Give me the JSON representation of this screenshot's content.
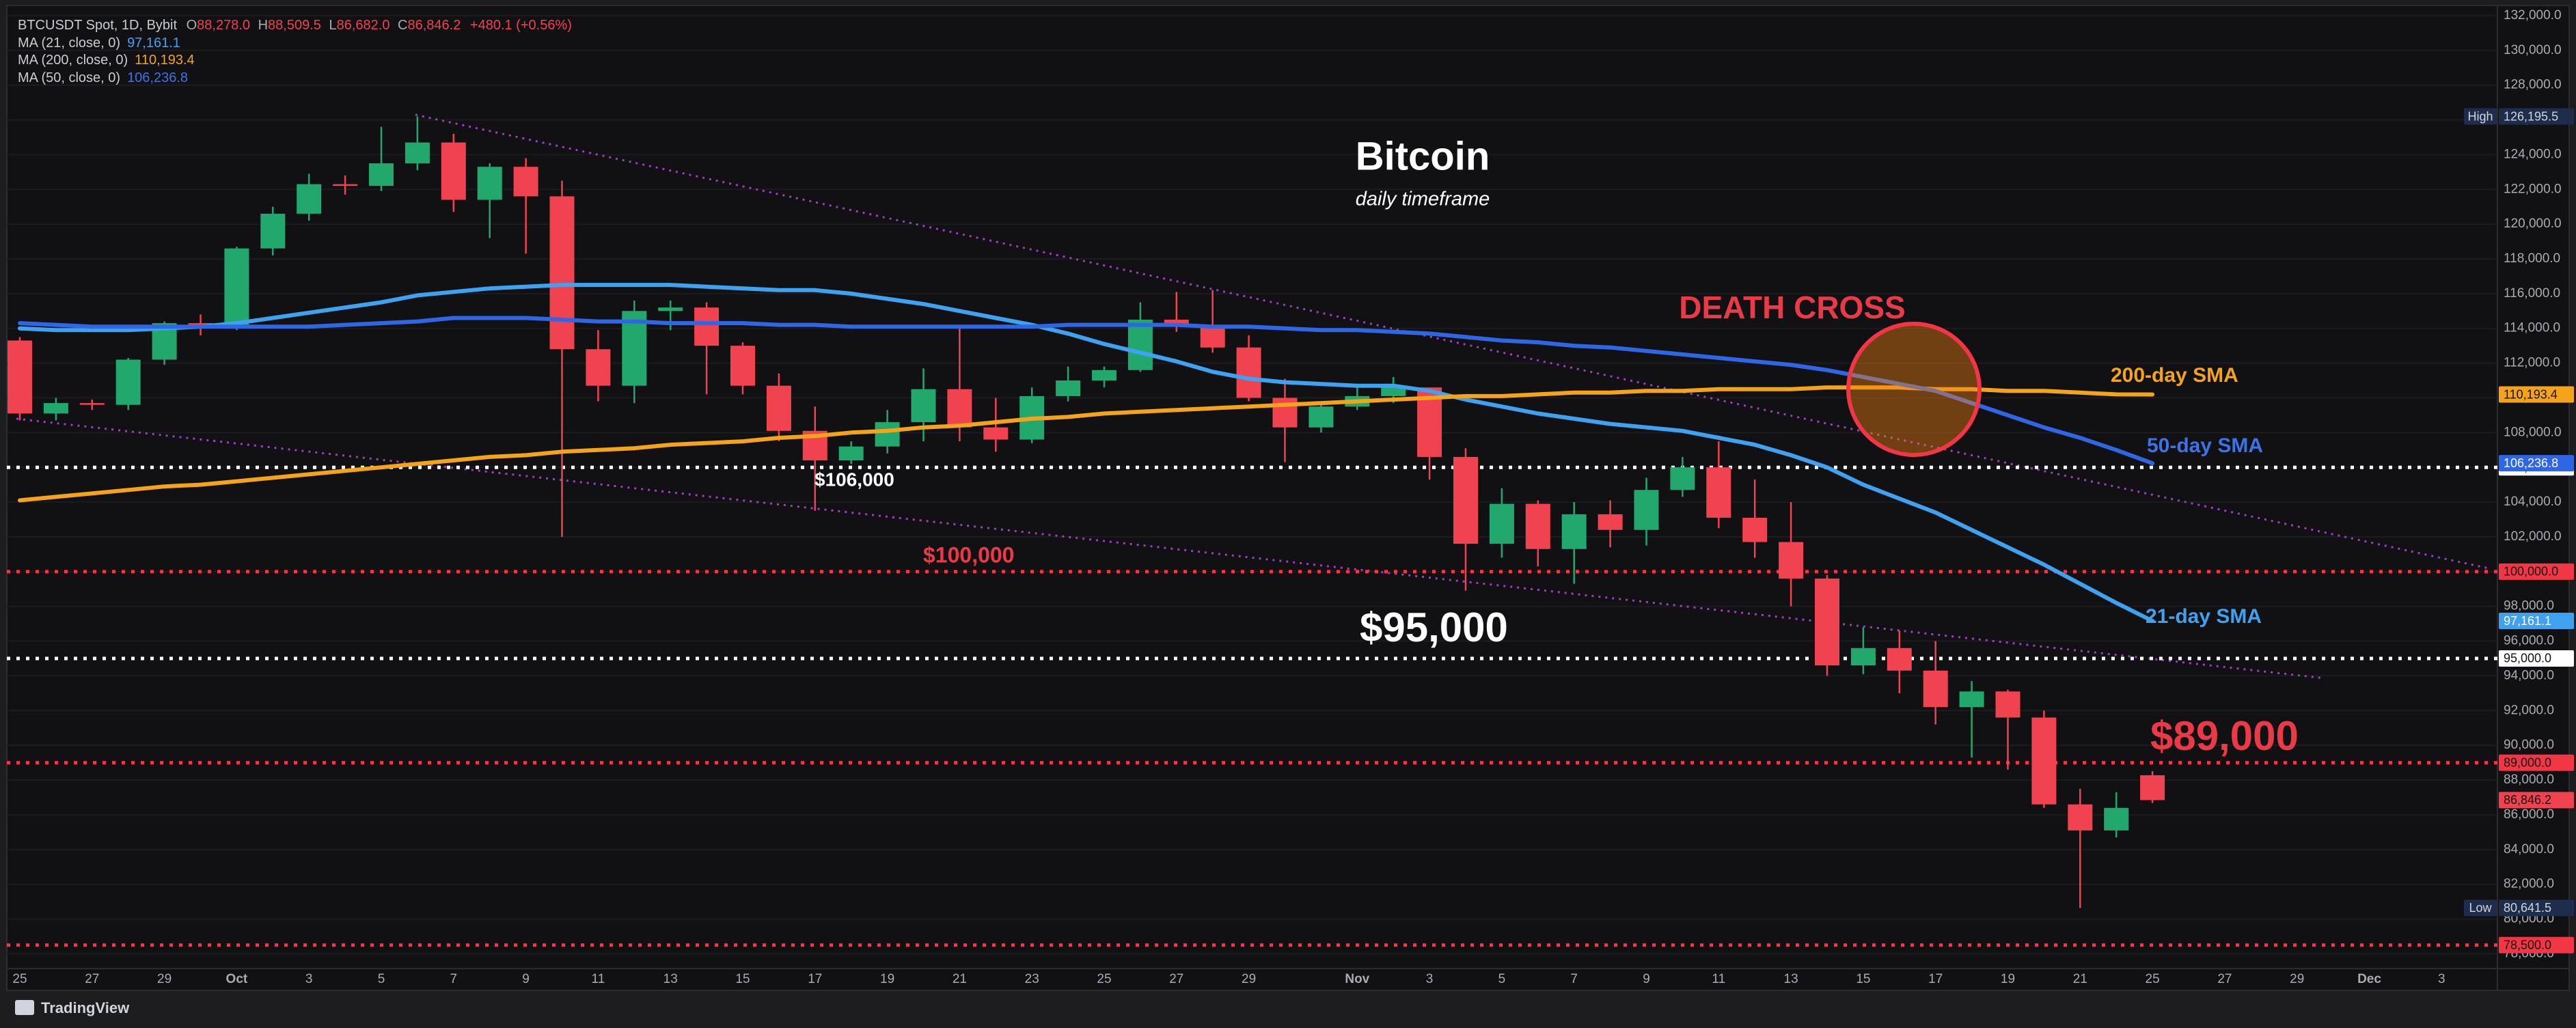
{
  "chart_data": {
    "type": "candlestick",
    "header": {
      "symbol": "BTCUSDT Spot, 1D, Bybit",
      "ohlc": [
        {
          "prefix": "O",
          "value": "88,278.0"
        },
        {
          "prefix": "H",
          "value": "88,509.5"
        },
        {
          "prefix": "L",
          "value": "86,682.0"
        },
        {
          "prefix": "C",
          "value": "86,846.2"
        }
      ],
      "change": "+480.1 (+0.56%)"
    },
    "title": "Bitcoin",
    "subtitle": "daily timeframe",
    "annotations": [
      "DEATH CROSS",
      "$106,000",
      "$100,000",
      "$95,000",
      "$89,000"
    ],
    "watermark": "TradingView",
    "categories": [
      "25",
      null,
      "27",
      null,
      "29",
      null,
      "Oct",
      null,
      "3",
      null,
      "5",
      null,
      "7",
      null,
      "9",
      null,
      "11",
      null,
      "13",
      null,
      "15",
      null,
      "17",
      null,
      "19",
      null,
      "21",
      null,
      "23",
      null,
      "25",
      null,
      "27",
      null,
      "29",
      null,
      null,
      "Nov",
      null,
      "3",
      null,
      "5",
      null,
      "7",
      null,
      "9",
      null,
      "11",
      null,
      "13",
      null,
      "15",
      null,
      "17",
      null,
      "19",
      null,
      "21",
      null,
      "25",
      null,
      "27",
      null,
      "29",
      null,
      "Dec",
      null,
      "3"
    ],
    "open": [
      113300,
      109100,
      109700,
      109600,
      112200,
      114300,
      114000,
      118600,
      120600,
      122300,
      122200,
      123500,
      124700,
      121400,
      123300,
      121600,
      112800,
      110700,
      115000,
      115200,
      113000,
      110700,
      108100,
      106400,
      107200,
      108600,
      110500,
      108300,
      107600,
      110100,
      111000,
      111600,
      114500,
      114100,
      112900,
      110000,
      108300,
      109500,
      110100,
      110600,
      106600,
      101600,
      103900,
      101300,
      103300,
      102400,
      104700,
      106000,
      103100,
      101700,
      99600,
      94600,
      95600,
      94300,
      92200,
      93100,
      91600,
      86600,
      85100,
      88278.0,
      null,
      null,
      null,
      null,
      null,
      null,
      null,
      null
    ],
    "high": [
      113500,
      110000,
      109900,
      112300,
      114400,
      114800,
      118700,
      121000,
      122900,
      122800,
      125600,
      126195.5,
      125200,
      123500,
      123800,
      122500,
      113900,
      115600,
      115600,
      115500,
      113200,
      111400,
      109500,
      107500,
      109300,
      111700,
      114000,
      110000,
      110600,
      111800,
      111800,
      115500,
      116100,
      116200,
      113600,
      111100,
      109600,
      110600,
      111200,
      110600,
      107100,
      104800,
      104100,
      104000,
      104100,
      105400,
      106600,
      107500,
      105300,
      104000,
      99800,
      96800,
      96600,
      96000,
      93700,
      93200,
      92000,
      87500,
      87300,
      88509.5,
      null,
      null,
      null,
      null,
      null,
      null,
      null,
      null
    ],
    "low": [
      108700,
      108700,
      109300,
      109300,
      111900,
      113600,
      113900,
      118200,
      120200,
      121700,
      121900,
      123100,
      120700,
      119200,
      118300,
      102000,
      109800,
      109700,
      113900,
      110200,
      110200,
      107500,
      103500,
      106200,
      106800,
      107500,
      107500,
      106900,
      107400,
      109800,
      110600,
      111500,
      113800,
      112600,
      109800,
      106300,
      108000,
      109300,
      109700,
      105300,
      98900,
      100800,
      100300,
      99300,
      101400,
      101500,
      104300,
      102500,
      100800,
      98000,
      94000,
      94100,
      93000,
      91200,
      89300,
      88600,
      86400,
      80641.5,
      84700,
      86682.0,
      null,
      null,
      null,
      null,
      null,
      null,
      null,
      null
    ],
    "close": [
      109100,
      109700,
      109600,
      112200,
      114300,
      114000,
      118600,
      120600,
      122300,
      122200,
      123500,
      124700,
      121400,
      123300,
      121600,
      112800,
      110700,
      115000,
      115200,
      113000,
      110700,
      108100,
      106400,
      107200,
      108600,
      110500,
      108300,
      107600,
      110100,
      111000,
      111600,
      114500,
      114100,
      112900,
      110000,
      108300,
      109500,
      110100,
      110600,
      106600,
      101600,
      103900,
      101300,
      103300,
      102400,
      104700,
      106000,
      103100,
      101700,
      99600,
      94600,
      95600,
      94300,
      92200,
      93100,
      91600,
      86600,
      85100,
      86400,
      86846.2,
      null,
      null,
      null,
      null,
      null,
      null,
      null,
      null
    ],
    "up_color": "#22a86c",
    "down_color": "#f0424f",
    "series": [
      {
        "name": "MA (21, close, 0)",
        "value_label": "97,161.1",
        "line_label": "21-day SMA",
        "color": "#3fa2f0",
        "values": [
          114000,
          113900,
          113900,
          113900,
          114000,
          114100,
          114300,
          114600,
          114900,
          115200,
          115500,
          115900,
          116100,
          116300,
          116400,
          116500,
          116500,
          116500,
          116500,
          116400,
          116300,
          116200,
          116200,
          116000,
          115700,
          115400,
          115000,
          114600,
          114200,
          113700,
          113100,
          112600,
          112100,
          111500,
          111100,
          110900,
          110800,
          110700,
          110700,
          110400,
          109900,
          109500,
          109100,
          108800,
          108500,
          108300,
          108100,
          107700,
          107300,
          106700,
          106000,
          105000,
          104200,
          103400,
          102400,
          101400,
          100400,
          99300,
          98200,
          97161.1,
          null,
          null,
          null,
          null,
          null,
          null,
          null,
          null
        ]
      },
      {
        "name": "MA (200, close, 0)",
        "value_label": "110,193.4",
        "line_label": "200-day SMA",
        "color": "#f5a31a",
        "values": [
          104100,
          104300,
          104500,
          104700,
          104900,
          105000,
          105200,
          105400,
          105600,
          105800,
          106000,
          106200,
          106400,
          106600,
          106700,
          106900,
          107000,
          107100,
          107300,
          107400,
          107500,
          107700,
          107800,
          108000,
          108100,
          108300,
          108400,
          108600,
          108800,
          108900,
          109100,
          109200,
          109300,
          109400,
          109500,
          109600,
          109700,
          109800,
          109900,
          110000,
          110100,
          110100,
          110200,
          110300,
          110300,
          110400,
          110400,
          110500,
          110500,
          110500,
          110600,
          110600,
          110600,
          110500,
          110500,
          110400,
          110400,
          110300,
          110200,
          110193.4,
          null,
          null,
          null,
          null,
          null,
          null,
          null,
          null
        ]
      },
      {
        "name": "MA (50, close, 0)",
        "value_label": "106,236.8",
        "line_label": "50-day SMA",
        "color": "#2f66e6",
        "values": [
          114300,
          114200,
          114100,
          114100,
          114100,
          114100,
          114100,
          114100,
          114100,
          114200,
          114300,
          114400,
          114600,
          114600,
          114600,
          114500,
          114400,
          114400,
          114300,
          114300,
          114300,
          114200,
          114200,
          114100,
          114100,
          114100,
          114100,
          114100,
          114100,
          114200,
          114200,
          114200,
          114200,
          114100,
          114100,
          114000,
          113900,
          113900,
          113800,
          113700,
          113500,
          113300,
          113200,
          113000,
          112900,
          112700,
          112500,
          112300,
          112100,
          111900,
          111600,
          111200,
          110800,
          110400,
          109700,
          109000,
          108300,
          107700,
          107000,
          106236.8,
          null,
          null,
          null,
          null,
          null,
          null,
          null,
          null
        ]
      }
    ],
    "levels": [
      {
        "value": 106000,
        "label": "106,000.0",
        "color": "#ffffff"
      },
      {
        "value": 100000,
        "label": "100,000.0",
        "color": "#f23645"
      },
      {
        "value": 95000,
        "label": "95,000.0",
        "color": "#ffffff"
      },
      {
        "value": 89000,
        "label": "89,000.0",
        "color": "#f23645"
      },
      {
        "value": 78500,
        "label": "78,500.0",
        "color": "#f23645"
      }
    ],
    "extremes": {
      "high": {
        "label": "High",
        "value": "126,195.5"
      },
      "low": {
        "label": "Low",
        "value": "80,641.5"
      }
    },
    "ylim": [
      77150,
      132350
    ],
    "yticks": [
      {
        "value": 78000,
        "label": "78,000.0"
      },
      {
        "value": 80000,
        "label": "80,000.0"
      },
      {
        "value": 82000,
        "label": "82,000.0"
      },
      {
        "value": 84000,
        "label": "84,000.0"
      },
      {
        "value": 86000,
        "label": "86,000.0"
      },
      {
        "value": 88000,
        "label": "88,000.0"
      },
      {
        "value": 90000,
        "label": "90,000.0"
      },
      {
        "value": 92000,
        "label": "92,000.0"
      },
      {
        "value": 94000,
        "label": "94,000.0"
      },
      {
        "value": 96000,
        "label": "96,000.0"
      },
      {
        "value": 98000,
        "label": "98,000.0"
      },
      {
        "value": 100000,
        "label": "100,000.0"
      },
      {
        "value": 102000,
        "label": "102,000.0"
      },
      {
        "value": 104000,
        "label": "104,000.0"
      },
      {
        "value": 106000,
        "label": "106,000.0"
      },
      {
        "value": 108000,
        "label": "108,000.0"
      },
      {
        "value": 110000,
        "label": "110,000.0"
      },
      {
        "value": 112000,
        "label": "112,000.0"
      },
      {
        "value": 114000,
        "label": "114,000.0"
      },
      {
        "value": 116000,
        "label": "116,000.0"
      },
      {
        "value": 118000,
        "label": "118,000.0"
      },
      {
        "value": 120000,
        "label": "120,000.0"
      },
      {
        "value": 122000,
        "label": "122,000.0"
      },
      {
        "value": 124000,
        "label": "124,000.0"
      },
      {
        "value": 126000,
        "label": "126,000.0"
      },
      {
        "value": 128000,
        "label": "128,000.0"
      },
      {
        "value": 130000,
        "label": "130,000.0"
      },
      {
        "value": 132000,
        "label": "132,000.0"
      }
    ],
    "grid": true
  }
}
